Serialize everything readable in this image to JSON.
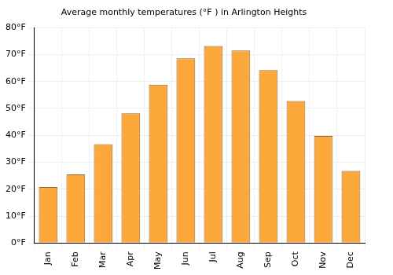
{
  "chart_data": {
    "type": "bar",
    "title": "Average monthly temperatures (°F ) in Arlington Heights",
    "categories": [
      "Jan",
      "Feb",
      "Mar",
      "Apr",
      "May",
      "Jun",
      "Jul",
      "Aug",
      "Sep",
      "Oct",
      "Nov",
      "Dec"
    ],
    "values": [
      20.8,
      25.5,
      36.7,
      48.2,
      58.8,
      68.6,
      73.2,
      71.5,
      64.2,
      52.8,
      39.8,
      26.8
    ],
    "color": "#fca83a",
    "ylim": [
      0,
      80
    ],
    "yticks": [
      {
        "value": 0,
        "label": "0°F"
      },
      {
        "value": 10,
        "label": "10°F"
      },
      {
        "value": 20,
        "label": "20°F"
      },
      {
        "value": 30,
        "label": "30°F"
      },
      {
        "value": 40,
        "label": "40°F"
      },
      {
        "value": 50,
        "label": "50°F"
      },
      {
        "value": 60,
        "label": "60°F"
      },
      {
        "value": 70,
        "label": "70°F"
      },
      {
        "value": 80,
        "label": "80°F"
      }
    ],
    "grid": true
  }
}
